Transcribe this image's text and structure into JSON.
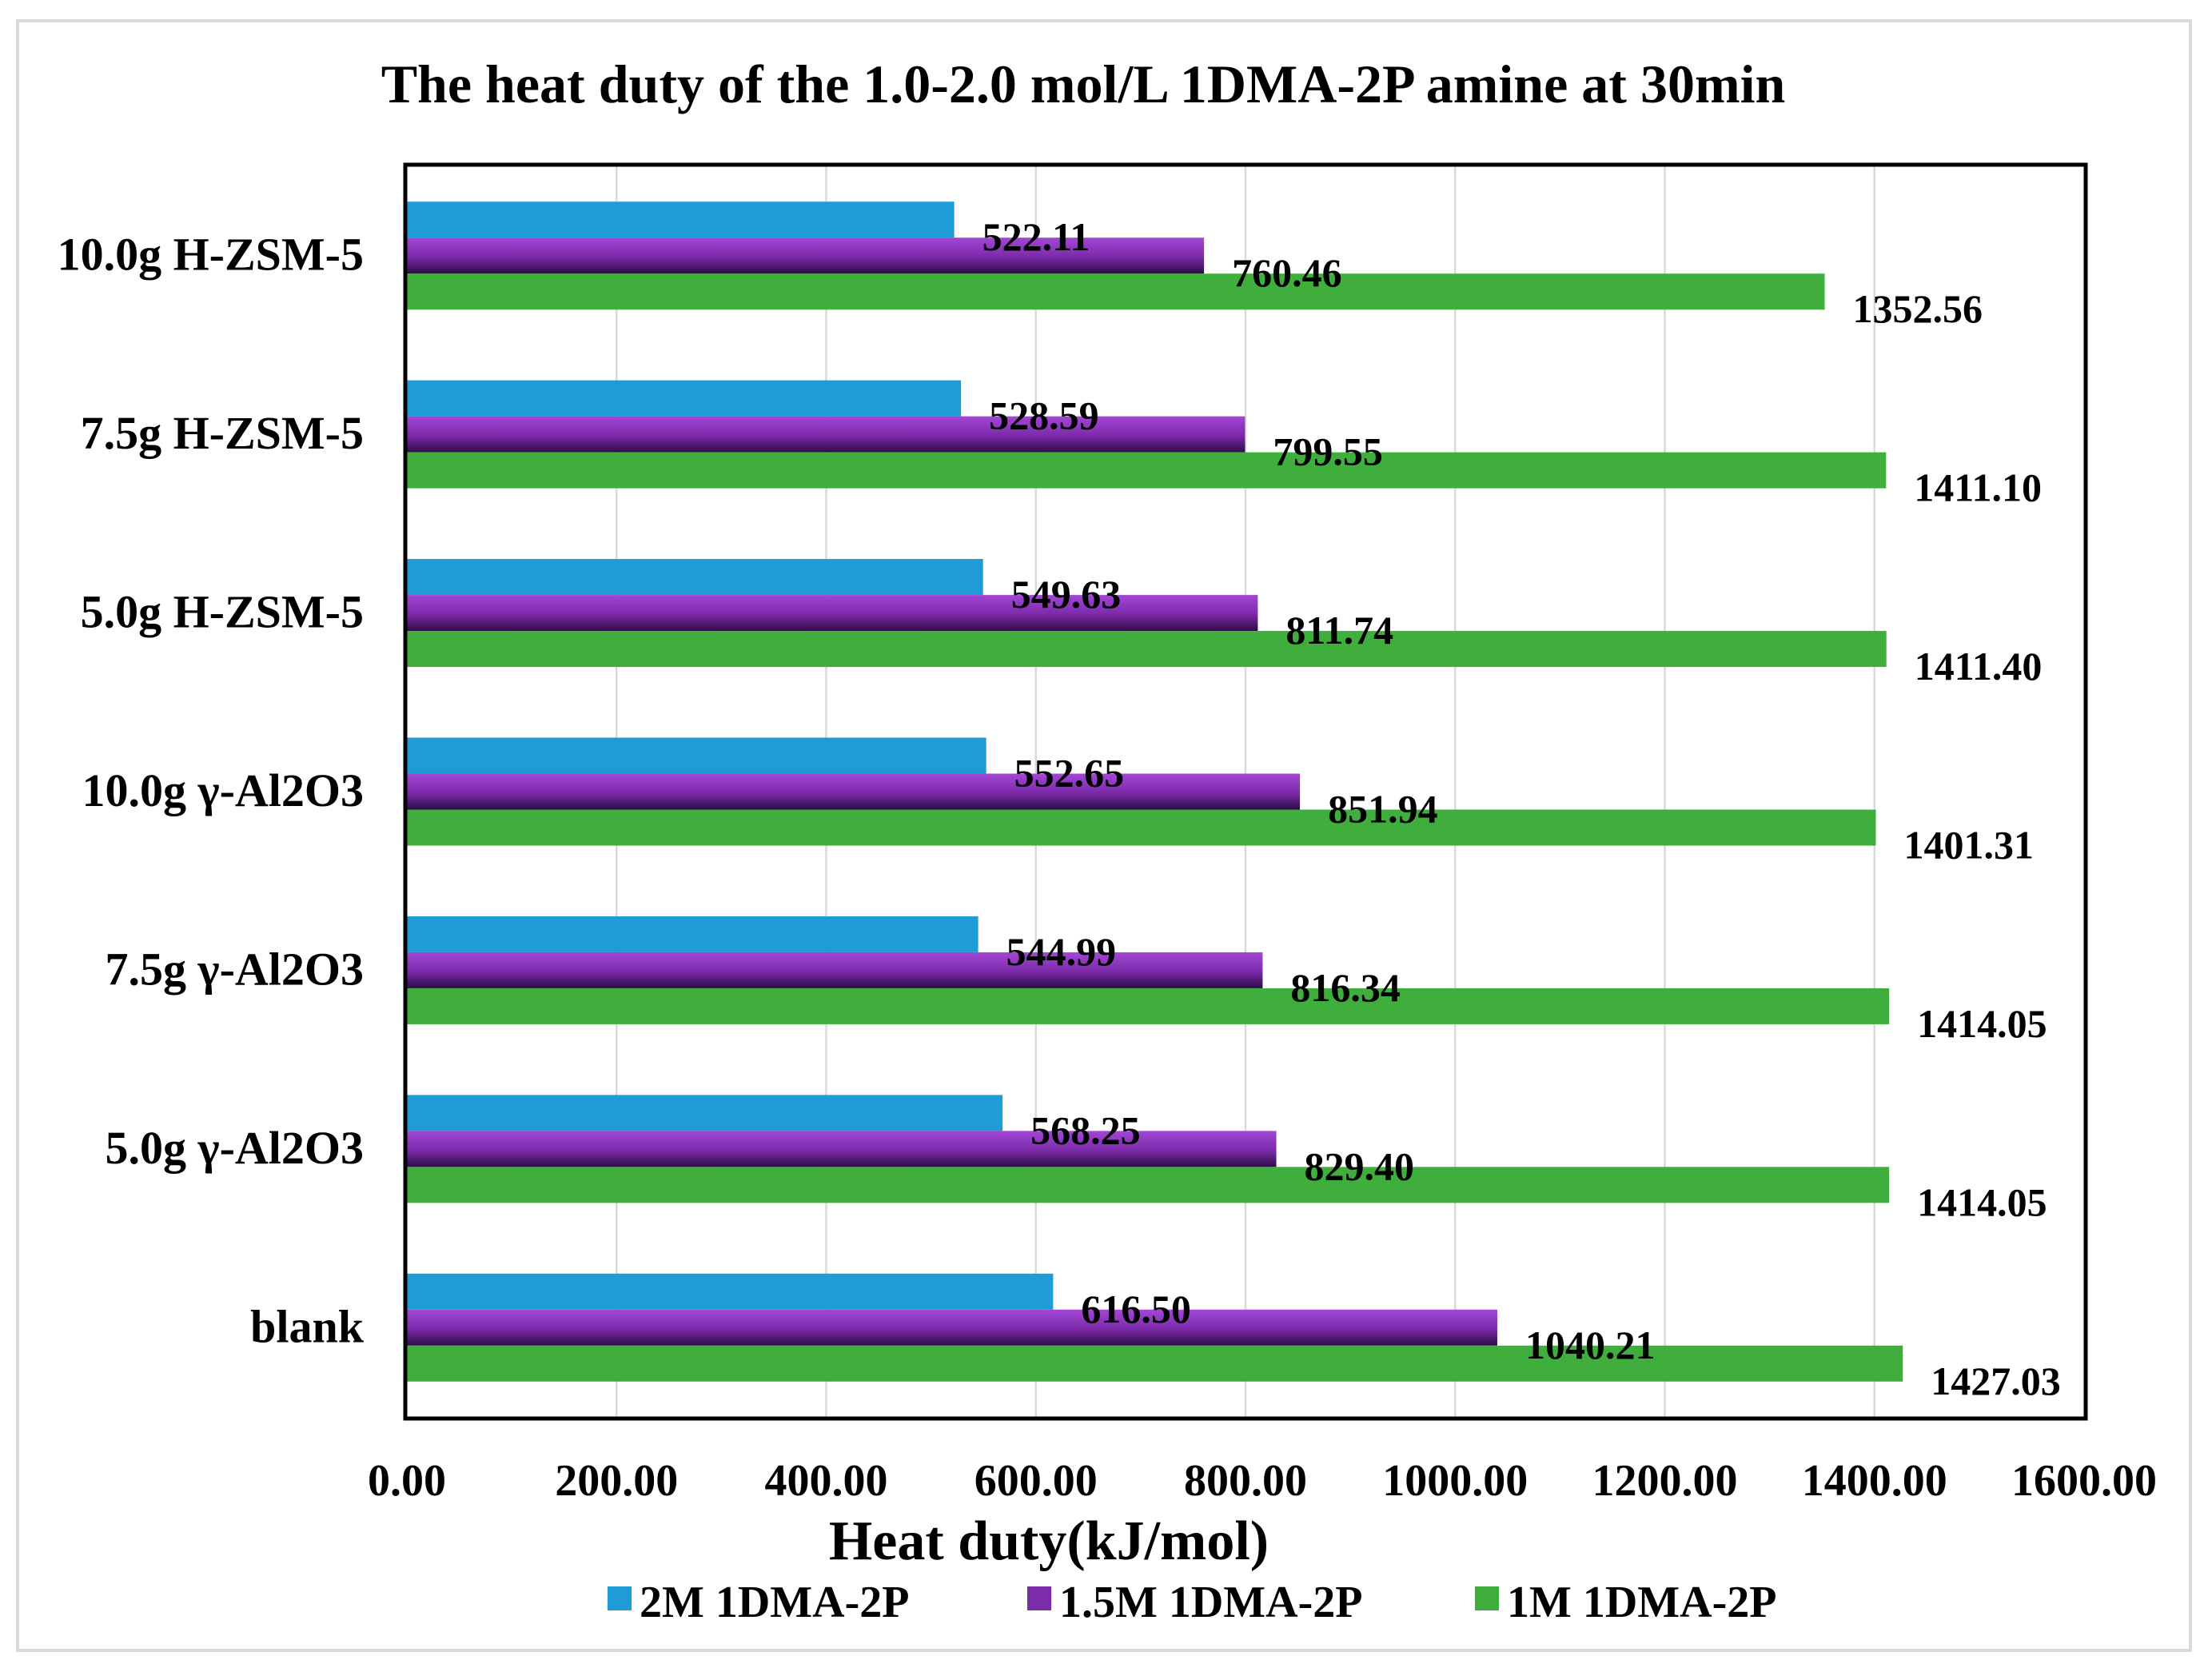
{
  "chart_data": {
    "type": "bar",
    "orientation": "horizontal",
    "title": "The heat duty of the 1.0-2.0 mol/L 1DMA-2P amine at 30min",
    "xlabel": "Heat duty(kJ/mol)",
    "ylabel": "",
    "xlim": [
      0,
      1600
    ],
    "x_ticks": [
      "0.00",
      "200.00",
      "400.00",
      "600.00",
      "800.00",
      "1000.00",
      "1200.00",
      "1400.00",
      "1600.00"
    ],
    "grid": true,
    "legend_position": "bottom",
    "categories": [
      "blank",
      "5.0g γ-Al2O3",
      "7.5g γ-Al2O3",
      "10.0g γ-Al2O3",
      "5.0g H-ZSM-5",
      "7.5g H-ZSM-5",
      "10.0g H-ZSM-5"
    ],
    "series": [
      {
        "name": "2M 1DMA-2P",
        "color": "#1f9bd7",
        "values": [
          616.5,
          568.25,
          544.99,
          552.65,
          549.63,
          528.59,
          522.11
        ],
        "labels": [
          "616.50",
          "568.25",
          "544.99",
          "552.65",
          "549.63",
          "528.59",
          "522.11"
        ]
      },
      {
        "name": "1.5M 1DMA-2P",
        "color": "#7b2ca8",
        "values": [
          1040.21,
          829.4,
          816.34,
          851.94,
          811.74,
          799.55,
          760.46
        ],
        "labels": [
          "1040.21",
          "829.40",
          "816.34",
          "851.94",
          "811.74",
          "799.55",
          "760.46"
        ]
      },
      {
        "name": "1M 1DMA-2P",
        "color": "#3fae3c",
        "values": [
          1427.03,
          1414.05,
          1414.05,
          1401.31,
          1411.4,
          1411.1,
          1352.56
        ],
        "labels": [
          "1427.03",
          "1414.05",
          "1414.05",
          "1401.31",
          "1411.40",
          "1411.10",
          "1352.56"
        ]
      }
    ]
  }
}
